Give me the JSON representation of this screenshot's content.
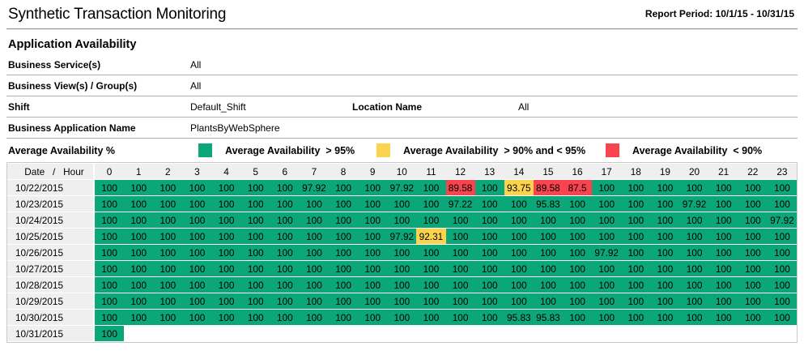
{
  "header": {
    "title": "Synthetic Transaction Monitoring",
    "report_period": "Report Period: 10/1/15 - 10/31/15",
    "section_title": "Application Availability"
  },
  "filters": {
    "business_service": {
      "label": "Business Service(s)",
      "value": "All"
    },
    "business_view": {
      "label": "Business View(s) / Group(s)",
      "value": "All"
    },
    "shift": {
      "label": "Shift",
      "value": "Default_Shift"
    },
    "location": {
      "label": "Location Name",
      "value": "All"
    },
    "business_app": {
      "label": "Business Application Name",
      "value": "PlantsByWebSphere"
    }
  },
  "legend": {
    "title": "Average Availability %",
    "items": [
      {
        "label": "Average Availability  > 95%",
        "color": "#0CA778"
      },
      {
        "label": "Average Availability  > 90% and < 95%",
        "color": "#FBD34D"
      },
      {
        "label": "Average Availability  < 90%",
        "color": "#F8444F"
      }
    ]
  },
  "chart_data": {
    "type": "heatmap",
    "corner_label": "Date   /   Hour",
    "hours": [
      0,
      1,
      2,
      3,
      4,
      5,
      6,
      7,
      8,
      9,
      10,
      11,
      12,
      13,
      14,
      15,
      16,
      17,
      18,
      19,
      20,
      21,
      22,
      23
    ],
    "value_unit": "percent availability",
    "thresholds": {
      "green_above": 95,
      "yellow_above": 90
    },
    "colors": {
      "green": "#0CA778",
      "yellow": "#FBD34D",
      "red": "#F8444F"
    },
    "rows": [
      {
        "date": "10/22/2015",
        "values": [
          "100",
          "100",
          "100",
          "100",
          "100",
          "100",
          "100",
          "97.92",
          "100",
          "100",
          "97.92",
          "100",
          "89.58",
          "100",
          "93.75",
          "89.58",
          "87.5",
          "100",
          "100",
          "100",
          "100",
          "100",
          "100",
          "100"
        ]
      },
      {
        "date": "10/23/2015",
        "values": [
          "100",
          "100",
          "100",
          "100",
          "100",
          "100",
          "100",
          "100",
          "100",
          "100",
          "100",
          "100",
          "97.22",
          "100",
          "100",
          "95.83",
          "100",
          "100",
          "100",
          "100",
          "97.92",
          "100",
          "100",
          "100"
        ]
      },
      {
        "date": "10/24/2015",
        "values": [
          "100",
          "100",
          "100",
          "100",
          "100",
          "100",
          "100",
          "100",
          "100",
          "100",
          "100",
          "100",
          "100",
          "100",
          "100",
          "100",
          "100",
          "100",
          "100",
          "100",
          "100",
          "100",
          "100",
          "97.92"
        ]
      },
      {
        "date": "10/25/2015",
        "values": [
          "100",
          "100",
          "100",
          "100",
          "100",
          "100",
          "100",
          "100",
          "100",
          "100",
          "97.92",
          "92.31",
          "100",
          "100",
          "100",
          "100",
          "100",
          "100",
          "100",
          "100",
          "100",
          "100",
          "100",
          "100"
        ]
      },
      {
        "date": "10/26/2015",
        "values": [
          "100",
          "100",
          "100",
          "100",
          "100",
          "100",
          "100",
          "100",
          "100",
          "100",
          "100",
          "100",
          "100",
          "100",
          "100",
          "100",
          "100",
          "97.92",
          "100",
          "100",
          "100",
          "100",
          "100",
          "100"
        ]
      },
      {
        "date": "10/27/2015",
        "values": [
          "100",
          "100",
          "100",
          "100",
          "100",
          "100",
          "100",
          "100",
          "100",
          "100",
          "100",
          "100",
          "100",
          "100",
          "100",
          "100",
          "100",
          "100",
          "100",
          "100",
          "100",
          "100",
          "100",
          "100"
        ]
      },
      {
        "date": "10/28/2015",
        "values": [
          "100",
          "100",
          "100",
          "100",
          "100",
          "100",
          "100",
          "100",
          "100",
          "100",
          "100",
          "100",
          "100",
          "100",
          "100",
          "100",
          "100",
          "100",
          "100",
          "100",
          "100",
          "100",
          "100",
          "100"
        ]
      },
      {
        "date": "10/29/2015",
        "values": [
          "100",
          "100",
          "100",
          "100",
          "100",
          "100",
          "100",
          "100",
          "100",
          "100",
          "100",
          "100",
          "100",
          "100",
          "100",
          "100",
          "100",
          "100",
          "100",
          "100",
          "100",
          "100",
          "100",
          "100"
        ]
      },
      {
        "date": "10/30/2015",
        "values": [
          "100",
          "100",
          "100",
          "100",
          "100",
          "100",
          "100",
          "100",
          "100",
          "100",
          "100",
          "100",
          "100",
          "100",
          "95.83",
          "95.83",
          "100",
          "100",
          "100",
          "100",
          "100",
          "100",
          "100",
          "100"
        ]
      },
      {
        "date": "10/31/2015",
        "values": [
          "100",
          null,
          null,
          null,
          null,
          null,
          null,
          null,
          null,
          null,
          null,
          null,
          null,
          null,
          null,
          null,
          null,
          null,
          null,
          null,
          null,
          null,
          null,
          null
        ]
      }
    ]
  }
}
